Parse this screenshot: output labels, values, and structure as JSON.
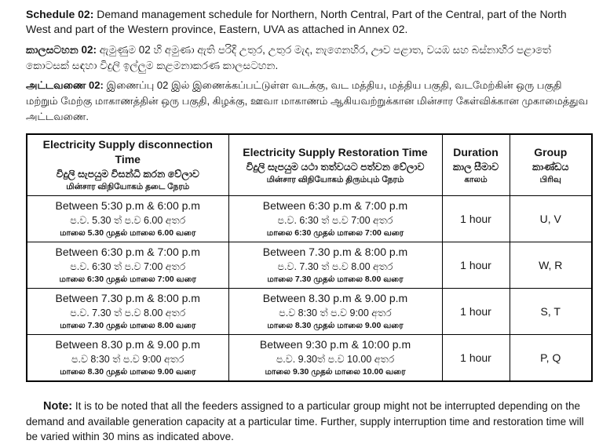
{
  "intro": {
    "english": {
      "label": "Schedule 02:",
      "text": "Demand management schedule for Northern, North Central, Part of the Central, part of the North West and part of the Western province, Eastern, UVA as attached in Annex 02."
    },
    "sinhala": {
      "label": "කාලසටහන 02:",
      "text": "ඇමුණුම 02 හි අමුණා ඇති පරිදි උතුර, උතුර මැද, නැගෙනහිර, ඌව පළාත, වයඹ සහ බස්නාහිර පළාතේ කොටසක් සඳහා විදුලි ඉල්ලුම කළමනාකරණ කාලසටහන."
    },
    "tamil": {
      "label": "அட்டவணை 02:",
      "text": "இணைப்பு 02 இல் இணைக்கப்பட்டுள்ள வடக்கு, வட மத்திய, மத்திய பகுதி, வடமேற்கின் ஒரு பகுதி மற்றும் மேற்கு மாகாணத்தின் ஒரு பகுதி, கிழக்கு, ஊவா மாகாணம் ஆகியவற்றுக்கான மின்சார கேள்விக்கான முகாமைத்துவ அட்டவணை."
    }
  },
  "table": {
    "headers": {
      "disconnection": {
        "en": "Electricity Supply disconnection Time",
        "si": "විදුලි සැපයුම විසන්ධි කරන වේලාව",
        "ta": "மின்சார விநியோகம் தடை நேரம்"
      },
      "restoration": {
        "en": "Electricity Supply Restoration Time",
        "si": "විදුලි සැපයුම යථා තත්වයට පත්වන වේලාව",
        "ta": "மின்சார விநியோகம் திரும்பும் நேரம்"
      },
      "duration": {
        "en": "Duration",
        "si": "කාල සීමාව",
        "ta": "காலம்"
      },
      "group": {
        "en": "Group",
        "si": "කාණ්ඩය",
        "ta": "பிரிவு"
      }
    },
    "rows": [
      {
        "disconnection": {
          "en": "Between 5:30 p.m & 6:00 p.m",
          "si": "ප.ව. 5.30 ත් ප.ව 6.00 අතර",
          "ta": "மாலை 5.30 முதல் மாலை 6.00 வரை"
        },
        "restoration": {
          "en": "Between 6:30 p.m & 7:00 p.m",
          "si": "ප.ව. 6:30 ත් ප.ව 7:00 අතර",
          "ta": "மாலை 6:30 முதல் மாலை 7:00 வரை"
        },
        "duration": "1 hour",
        "group": "U, V"
      },
      {
        "disconnection": {
          "en": "Between 6:30 p.m & 7:00 p.m",
          "si": "ප.ව. 6:30 ත් ප.ව 7:00 අතර",
          "ta": "மாலை 6:30 முதல் மாலை 7:00 வரை"
        },
        "restoration": {
          "en": "Between 7.30 p.m & 8:00 p.m",
          "si": "ප.ව. 7.30 ත් ප.ව 8.00 අතර",
          "ta": "மாலை 7.30 முதல் மாலை 8.00 வரை"
        },
        "duration": "1 hour",
        "group": "W, R"
      },
      {
        "disconnection": {
          "en": "Between 7.30 p.m & 8:00 p.m",
          "si": "ප.ව. 7.30 ත් ප.ව 8.00 අතර",
          "ta": "மாலை 7.30 முதல் மாலை 8.00 வரை"
        },
        "restoration": {
          "en": "Between 8.30 p.m & 9.00 p.m",
          "si": "ප.ව 8:30 ත් ප.ව 9:00 අතර",
          "ta": "மாலை 8.30 முதல் மாலை 9.00 வரை"
        },
        "duration": "1 hour",
        "group": "S, T"
      },
      {
        "disconnection": {
          "en": "Between 8.30 p.m & 9.00 p.m",
          "si": "ප.ව 8:30 ත් ප.ව 9:00 අතර",
          "ta": "மாலை 8.30 முதல் மாலை 9.00 வரை"
        },
        "restoration": {
          "en": "Between 9:30 p.m & 10:00 p.m",
          "si": "ප.ව. 9.30ත් ප.ව 10.00 අතර",
          "ta": "மாலை 9.30 முதல் மாலை 10.00 வரை"
        },
        "duration": "1 hour",
        "group": "P, Q"
      }
    ]
  },
  "note": {
    "label": "Note:",
    "text": "It is to be noted that all the feeders assigned to a particular group might not be interrupted depending on the demand and available generation capacity at a particular time. Further, supply interruption time and restoration time will be varied within 30 mins as indicated above."
  }
}
